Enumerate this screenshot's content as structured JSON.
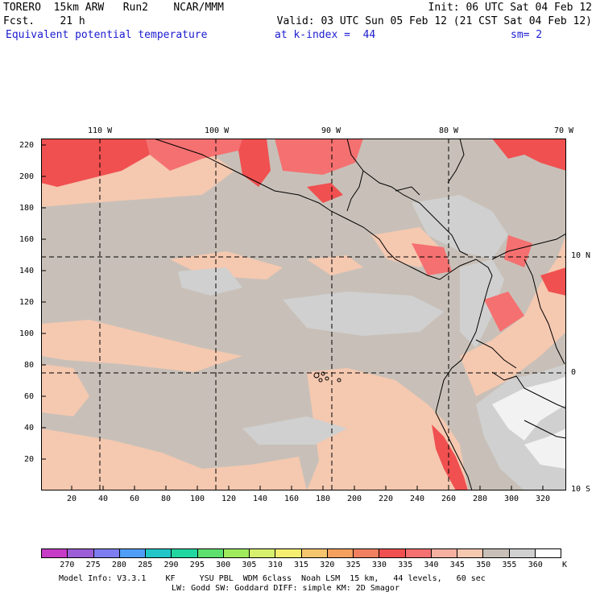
{
  "header": {
    "line1_left": "TORERO  15km ARW   Run2    NCAR/MMM",
    "line1_right": "Init: 06 UTC Sat 04 Feb 12",
    "line2_left": "Fcst.    21 h",
    "line2_right": "Valid: 03 UTC Sun 05 Feb 12 (21 CST Sat 04 Feb 12)",
    "line3_field": "Equivalent potential temperature",
    "line3_level": "at k-index =  44",
    "line3_sm": "sm= 2"
  },
  "map": {
    "lon_labels": [
      "110 W",
      "100 W",
      "90 W",
      "80 W",
      "70 W"
    ],
    "lat_labels": [
      "10 N",
      "0",
      "10 S"
    ],
    "y_ticks": [
      "20",
      "40",
      "60",
      "80",
      "100",
      "120",
      "140",
      "160",
      "180",
      "200",
      "220"
    ],
    "x_ticks": [
      "20",
      "40",
      "60",
      "80",
      "100",
      "120",
      "140",
      "160",
      "180",
      "200",
      "220",
      "240",
      "260",
      "280",
      "300",
      "320"
    ]
  },
  "colorbar": {
    "labels": [
      "270",
      "275",
      "280",
      "285",
      "290",
      "295",
      "300",
      "305",
      "310",
      "315",
      "320",
      "325",
      "330",
      "335",
      "340",
      "345",
      "350",
      "355",
      "360"
    ],
    "unit": "K",
    "colors": [
      "#c63cc6",
      "#9b5ed6",
      "#7d7df0",
      "#4f9df5",
      "#22c6c6",
      "#22d6a0",
      "#5ee06e",
      "#a0ea5e",
      "#d6f06e",
      "#f5ee70",
      "#f5c66e",
      "#f5a05e",
      "#f08060",
      "#f05050",
      "#f57070",
      "#f5b0a0",
      "#f5c8b0",
      "#c8c0b8",
      "#d0d0d0",
      "#ffffff"
    ]
  },
  "footer": {
    "line1": "Model Info: V3.3.1    KF     YSU PBL  WDM 6class  Noah LSM  15 km,   44 levels,   60 sec",
    "line2": "LW: Godd SW: Goddard DIFF: simple KM: 2D Smagor"
  }
}
